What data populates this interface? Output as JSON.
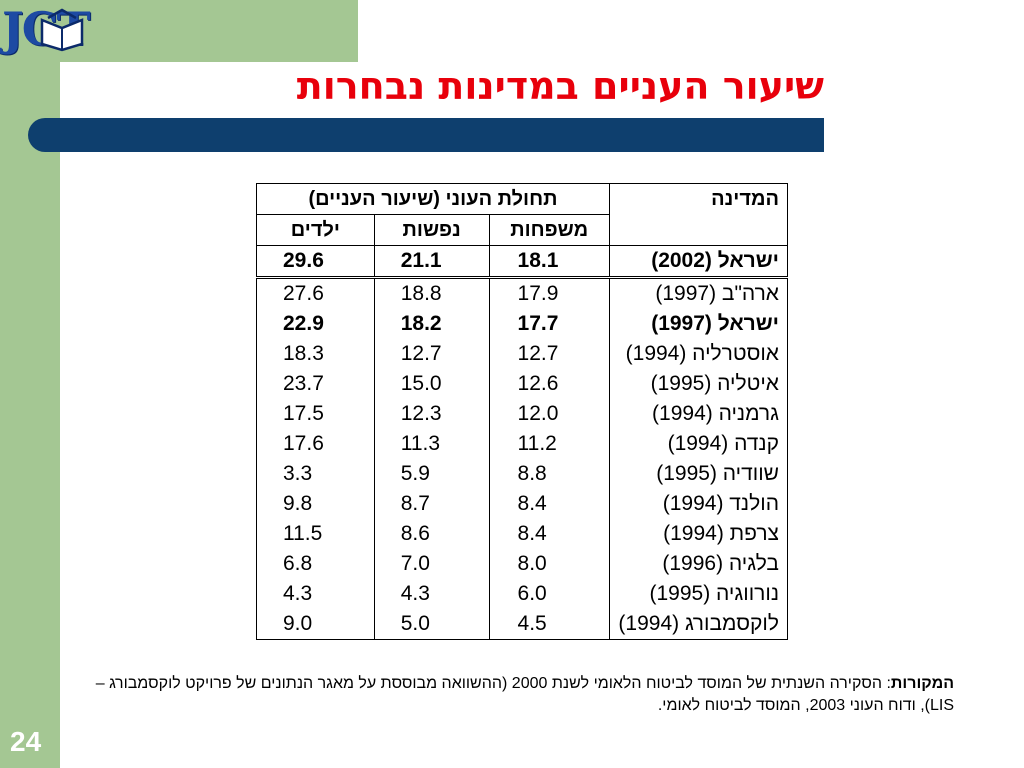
{
  "logo": {
    "text": "JCT"
  },
  "title": "שיעור העניים במדינות נבחרות",
  "table": {
    "country_header": "המדינה",
    "group_header": "תחולת העוני (שיעור העניים)",
    "sub_headers": [
      "משפחות",
      "נפשות",
      "ילדים"
    ],
    "rows": [
      {
        "country": "ישראל (2002)",
        "families": "18.1",
        "persons": "21.1",
        "children": "29.6",
        "style": "israel"
      },
      {
        "country": "ארה\"ב (1997)",
        "families": "17.9",
        "persons": "18.8",
        "children": "27.6",
        "style": "normal"
      },
      {
        "country": "ישראל (1997)",
        "families": "17.7",
        "persons": "18.2",
        "children": "22.9",
        "style": "bold"
      },
      {
        "country": "אוסטרליה (1994)",
        "families": "12.7",
        "persons": "12.7",
        "children": "18.3",
        "style": "normal"
      },
      {
        "country": "איטליה (1995)",
        "families": "12.6",
        "persons": "15.0",
        "children": "23.7",
        "style": "normal"
      },
      {
        "country": "גרמניה (1994)",
        "families": "12.0",
        "persons": "12.3",
        "children": "17.5",
        "style": "normal"
      },
      {
        "country": "קנדה (1994)",
        "families": "11.2",
        "persons": "11.3",
        "children": "17.6",
        "style": "normal"
      },
      {
        "country": "שוודיה (1995)",
        "families": "8.8",
        "persons": "5.9",
        "children": "3.3",
        "style": "normal"
      },
      {
        "country": "הולנד (1994)",
        "families": "8.4",
        "persons": "8.7",
        "children": "9.8",
        "style": "normal"
      },
      {
        "country": "צרפת (1994)",
        "families": "8.4",
        "persons": "8.6",
        "children": "11.5",
        "style": "normal"
      },
      {
        "country": "בלגיה (1996)",
        "families": "8.0",
        "persons": "7.0",
        "children": "6.8",
        "style": "normal"
      },
      {
        "country": "נורווגיה (1995)",
        "families": "6.0",
        "persons": "4.3",
        "children": "4.3",
        "style": "normal"
      },
      {
        "country": "לוקסמבורג (1994)",
        "families": "4.5",
        "persons": "5.0",
        "children": "9.0",
        "style": "last"
      }
    ]
  },
  "sources": {
    "label": "המקורות",
    "text": ": הסקירה השנתית של המוסד לביטוח הלאומי לשנת 2000 (ההשוואה מבוססת על מאגר הנתונים של פרויקט לוקסמבורג – LIS), ודוח העוני 2003, המוסד לביטוח לאומי."
  },
  "page_number": "24",
  "colors": {
    "frame_green": "#a4c793",
    "title_red": "#e8000b",
    "bar_navy": "#0e3f6e",
    "logo_blue": "#1d4aa3"
  }
}
